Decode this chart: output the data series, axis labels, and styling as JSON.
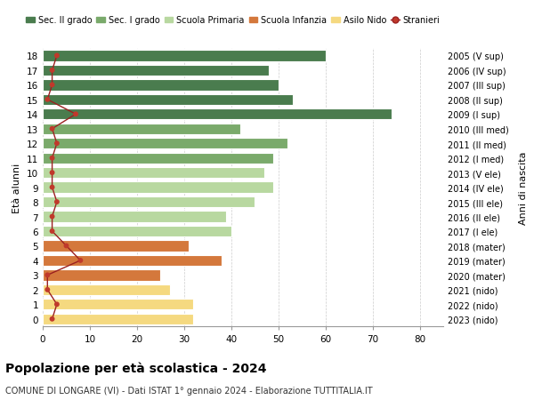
{
  "ages": [
    18,
    17,
    16,
    15,
    14,
    13,
    12,
    11,
    10,
    9,
    8,
    7,
    6,
    5,
    4,
    3,
    2,
    1,
    0
  ],
  "years": [
    "2005 (V sup)",
    "2006 (IV sup)",
    "2007 (III sup)",
    "2008 (II sup)",
    "2009 (I sup)",
    "2010 (III med)",
    "2011 (II med)",
    "2012 (I med)",
    "2013 (V ele)",
    "2014 (IV ele)",
    "2015 (III ele)",
    "2016 (II ele)",
    "2017 (I ele)",
    "2018 (mater)",
    "2019 (mater)",
    "2020 (mater)",
    "2021 (nido)",
    "2022 (nido)",
    "2023 (nido)"
  ],
  "values": [
    60,
    48,
    50,
    53,
    74,
    42,
    52,
    49,
    47,
    49,
    45,
    39,
    40,
    31,
    38,
    25,
    27,
    32,
    32
  ],
  "stranieri": [
    3,
    2,
    2,
    1,
    7,
    2,
    3,
    2,
    2,
    2,
    3,
    2,
    2,
    5,
    8,
    1,
    1,
    3,
    2
  ],
  "colors": {
    "sec2": "#4a7c4e",
    "sec1": "#7aaa6b",
    "primaria": "#b8d8a0",
    "infanzia": "#d4783c",
    "nido": "#f5d980",
    "stranieri_line": "#9b2020",
    "stranieri_dot": "#c0392b"
  },
  "bar_colors": [
    "#4a7c4e",
    "#4a7c4e",
    "#4a7c4e",
    "#4a7c4e",
    "#4a7c4e",
    "#7aaa6b",
    "#7aaa6b",
    "#7aaa6b",
    "#b8d8a0",
    "#b8d8a0",
    "#b8d8a0",
    "#b8d8a0",
    "#b8d8a0",
    "#d4783c",
    "#d4783c",
    "#d4783c",
    "#f5d980",
    "#f5d980",
    "#f5d980"
  ],
  "title": "Popolazione per età scolastica - 2024",
  "subtitle": "COMUNE DI LONGARE (VI) - Dati ISTAT 1° gennaio 2024 - Elaborazione TUTTITALIA.IT",
  "ylabel": "Età alunni",
  "right_label": "Anni di nascita",
  "xlim": [
    0,
    85
  ],
  "xticks": [
    0,
    10,
    20,
    30,
    40,
    50,
    60,
    70,
    80
  ],
  "background_color": "#ffffff",
  "grid_color": "#cccccc"
}
